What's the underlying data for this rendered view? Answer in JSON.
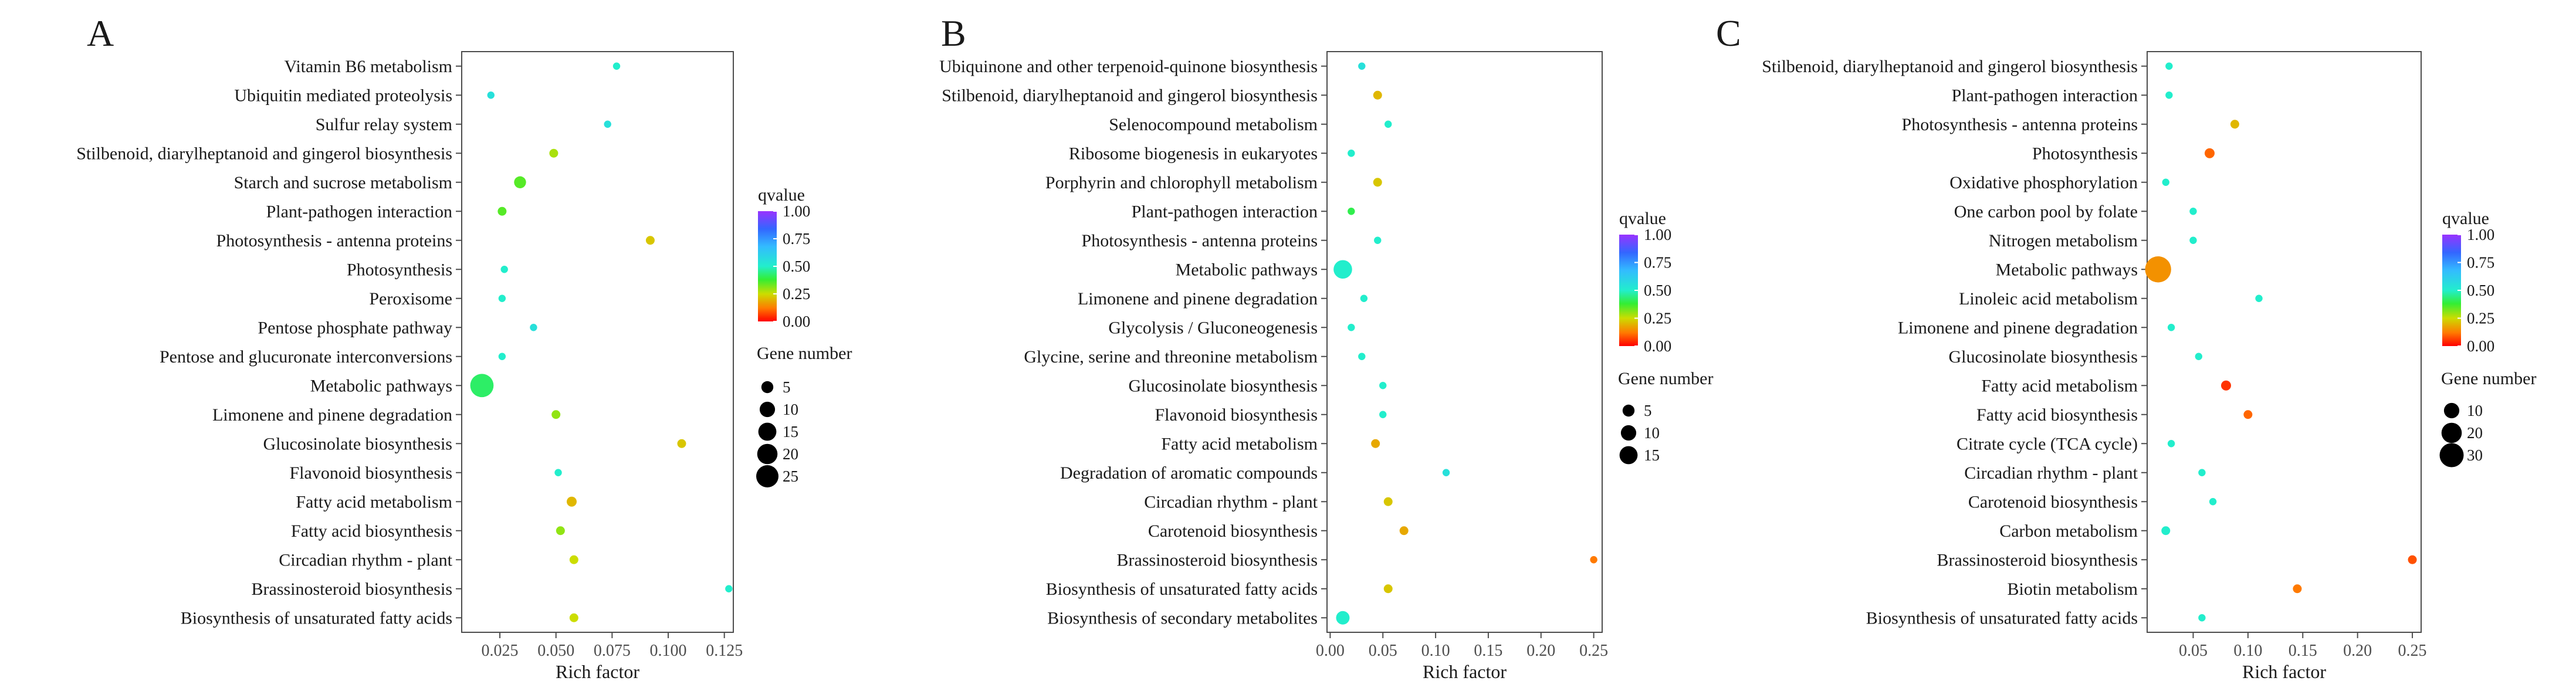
{
  "figure": {
    "legend_titles": {
      "color": "qvalue",
      "size": "Gene number"
    }
  },
  "chart_data": [
    {
      "panel": "A",
      "type": "scatter",
      "title": "",
      "xlabel": "Rich factor",
      "ylabel": "",
      "xlim": [
        0.008,
        0.129
      ],
      "xticks": [
        0.025,
        0.05,
        0.075,
        0.1,
        0.125
      ],
      "xtick_labels": [
        "0.025",
        "0.050",
        "0.075",
        "0.100",
        "0.125"
      ],
      "categories": [
        "Vitamin B6 metabolism",
        "Ubiquitin mediated proteolysis",
        "Sulfur relay system",
        "Stilbenoid, diarylheptanoid and gingerol biosynthesis",
        "Starch and sucrose metabolism",
        "Plant-pathogen interaction",
        "Photosynthesis - antenna proteins",
        "Photosynthesis",
        "Peroxisome",
        "Pentose phosphate pathway",
        "Pentose and glucuronate interconversions",
        "Metabolic pathways",
        "Limonene and pinene degradation",
        "Glucosinolate biosynthesis",
        "Flavonoid biosynthesis",
        "Fatty acid metabolism",
        "Fatty acid biosynthesis",
        "Circadian rhythm - plant",
        "Brassinosteroid biosynthesis",
        "Biosynthesis of unsaturated fatty acids"
      ],
      "x": [
        0.077,
        0.021,
        0.073,
        0.049,
        0.034,
        0.026,
        0.092,
        0.027,
        0.026,
        0.04,
        0.026,
        0.017,
        0.05,
        0.106,
        0.051,
        0.057,
        0.052,
        0.058,
        0.127,
        0.058
      ],
      "gene_number": [
        1,
        1,
        1,
        2,
        5,
        2,
        2,
        1,
        1,
        1,
        1,
        28,
        2,
        2,
        1,
        3,
        2,
        2,
        1,
        2
      ],
      "qvalue": [
        0.5,
        0.55,
        0.55,
        0.28,
        0.35,
        0.35,
        0.22,
        0.5,
        0.5,
        0.55,
        0.5,
        0.42,
        0.3,
        0.22,
        0.5,
        0.2,
        0.3,
        0.25,
        0.5,
        0.25
      ],
      "size_legend": [
        5,
        10,
        15,
        20,
        25
      ],
      "color_legend": {
        "min": 0.0,
        "max": 1.0,
        "ticks": [
          "0.00",
          "0.25",
          "0.50",
          "0.75",
          "1.00"
        ]
      }
    },
    {
      "panel": "B",
      "type": "scatter",
      "title": "",
      "xlabel": "Rich factor",
      "ylabel": "",
      "xlim": [
        -0.003,
        0.258
      ],
      "xticks": [
        0,
        0.05,
        0.1,
        0.15,
        0.2,
        0.25
      ],
      "xtick_labels": [
        "0.00",
        "0.05",
        "0.10",
        "0.15",
        "0.20",
        "0.25"
      ],
      "categories": [
        "Ubiquinone and other terpenoid-quinone biosynthesis",
        "Stilbenoid, diarylheptanoid and gingerol biosynthesis",
        "Selenocompound metabolism",
        "Ribosome biogenesis in eukaryotes",
        "Porphyrin and chlorophyll metabolism",
        "Plant-pathogen interaction",
        "Photosynthesis - antenna proteins",
        "Metabolic pathways",
        "Limonene and pinene degradation",
        "Glycolysis / Gluconeogenesis",
        "Glycine, serine and threonine metabolism",
        "Glucosinolate biosynthesis",
        "Flavonoid biosynthesis",
        "Fatty acid metabolism",
        "Degradation of aromatic compounds",
        "Circadian rhythm - plant",
        "Carotenoid biosynthesis",
        "Brassinosteroid biosynthesis",
        "Biosynthesis of unsaturated fatty acids",
        "Biosynthesis of secondary metabolites"
      ],
      "x": [
        0.03,
        0.045,
        0.055,
        0.02,
        0.045,
        0.02,
        0.045,
        0.012,
        0.032,
        0.02,
        0.03,
        0.05,
        0.05,
        0.043,
        0.11,
        0.055,
        0.07,
        0.25,
        0.055,
        0.012
      ],
      "gene_number": [
        1,
        2,
        1,
        1,
        2,
        1,
        1,
        16,
        1,
        1,
        1,
        1,
        1,
        2,
        1,
        2,
        2,
        1,
        2,
        7
      ],
      "qvalue": [
        0.55,
        0.2,
        0.5,
        0.5,
        0.22,
        0.4,
        0.5,
        0.5,
        0.5,
        0.5,
        0.5,
        0.5,
        0.5,
        0.18,
        0.55,
        0.22,
        0.18,
        0.12,
        0.22,
        0.5
      ],
      "size_legend": [
        5,
        10,
        15
      ],
      "color_legend": {
        "min": 0.0,
        "max": 1.0,
        "ticks": [
          "0.00",
          "0.25",
          "0.50",
          "0.75",
          "1.00"
        ]
      }
    },
    {
      "panel": "C",
      "type": "scatter",
      "title": "",
      "xlabel": "Rich factor",
      "ylabel": "",
      "xlim": [
        0.008,
        0.258
      ],
      "xticks": [
        0.05,
        0.1,
        0.15,
        0.2,
        0.25
      ],
      "xtick_labels": [
        "0.05",
        "0.10",
        "0.15",
        "0.20",
        "0.25"
      ],
      "categories": [
        "Stilbenoid, diarylheptanoid and gingerol biosynthesis",
        "Plant-pathogen interaction",
        "Photosynthesis - antenna proteins",
        "Photosynthesis",
        "Oxidative phosphorylation",
        "One carbon pool by folate",
        "Nitrogen metabolism",
        "Metabolic pathways",
        "Linoleic acid metabolism",
        "Limonene and pinene degradation",
        "Glucosinolate biosynthesis",
        "Fatty acid metabolism",
        "Fatty acid biosynthesis",
        "Citrate cycle (TCA cycle)",
        "Circadian rhythm - plant",
        "Carotenoid biosynthesis",
        "Carbon metabolism",
        "Brassinosteroid biosynthesis",
        "Biotin metabolism",
        "Biosynthesis of unsaturated fatty acids"
      ],
      "x": [
        0.028,
        0.028,
        0.088,
        0.065,
        0.025,
        0.05,
        0.05,
        0.018,
        0.11,
        0.03,
        0.055,
        0.08,
        0.1,
        0.03,
        0.058,
        0.068,
        0.025,
        0.25,
        0.145,
        0.058
      ],
      "gene_number": [
        1,
        1,
        2,
        3,
        1,
        1,
        1,
        36,
        1,
        1,
        1,
        3,
        2,
        1,
        1,
        1,
        2,
        2,
        2,
        1
      ],
      "qvalue": [
        0.5,
        0.5,
        0.2,
        0.1,
        0.5,
        0.5,
        0.5,
        0.15,
        0.5,
        0.5,
        0.5,
        0.05,
        0.1,
        0.5,
        0.5,
        0.5,
        0.5,
        0.08,
        0.12,
        0.5
      ],
      "size_legend": [
        10,
        20,
        30
      ],
      "color_legend": {
        "min": 0.0,
        "max": 1.0,
        "ticks": [
          "0.00",
          "0.25",
          "0.50",
          "0.75",
          "1.00"
        ]
      }
    }
  ]
}
